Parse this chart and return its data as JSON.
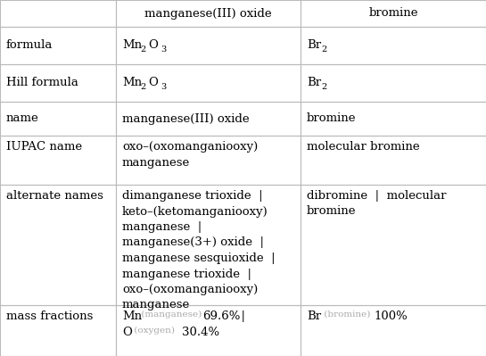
{
  "figsize": [
    5.45,
    3.99
  ],
  "dpi": 100,
  "grid_color": "#bbbbbb",
  "text_color": "#000000",
  "subtext_color": "#aaaaaa",
  "header_font_size": 9.5,
  "font_size": 9.5,
  "col_headers": [
    "manganese(III) oxide",
    "bromine"
  ],
  "col2_name": "manganese(III) oxide",
  "col3_name": "bromine",
  "col2_iupac": "oxo–(oxomanganiooxy)\nmanganese",
  "col3_iupac": "molecular bromine",
  "col2_alt": "dimanganese trioxide  |\nketo–(ketomanganiooxy)\nmanganese  |\nmanganese(3+) oxide  |\nmanganese sesquioxide  |\nmanganese trioxide  |\noxo–(oxomanganiooxy)\nmanganese",
  "col3_alt": "dibromine  |  molecular\nbromine",
  "row_label_0": "formula",
  "row_label_1": "Hill formula",
  "row_label_2": "name",
  "row_label_3": "IUPAC name",
  "row_label_4": "alternate names",
  "row_label_5": "mass fractions"
}
